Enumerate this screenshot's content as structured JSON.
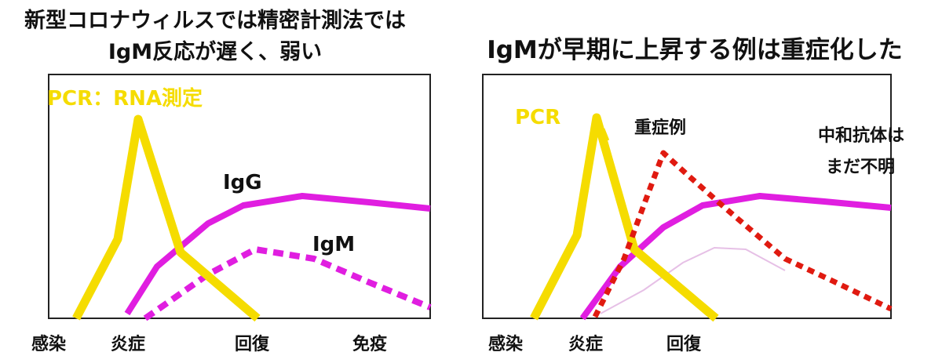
{
  "left_panel": {
    "title_line1": "新型コロナウィルスでは精密計測法では",
    "title_line2": "IgM反応が遅く、弱い",
    "pcr_label": "PCR：RNA測定",
    "igg_label": "IgG",
    "igm_label": "IgM",
    "x_labels": [
      "感染",
      "炎症",
      "回復",
      "免疫"
    ]
  },
  "right_panel": {
    "title": "IgMが早期に上昇する例は重症化した",
    "pcr_label": "PCR",
    "severe_label": "重症例",
    "neutralizing_label_line1": "中和抗体は",
    "neutralizing_label_line2": "まだ不明",
    "x_labels": [
      "感染",
      "炎症",
      "回復"
    ]
  },
  "colors": {
    "pcr": "#f5dc00",
    "igg": "#e01ee0",
    "igm": "#e01ee0",
    "severe": "#e01a10",
    "faint_igm": "#e6c0e6",
    "frame": "#222222"
  }
}
